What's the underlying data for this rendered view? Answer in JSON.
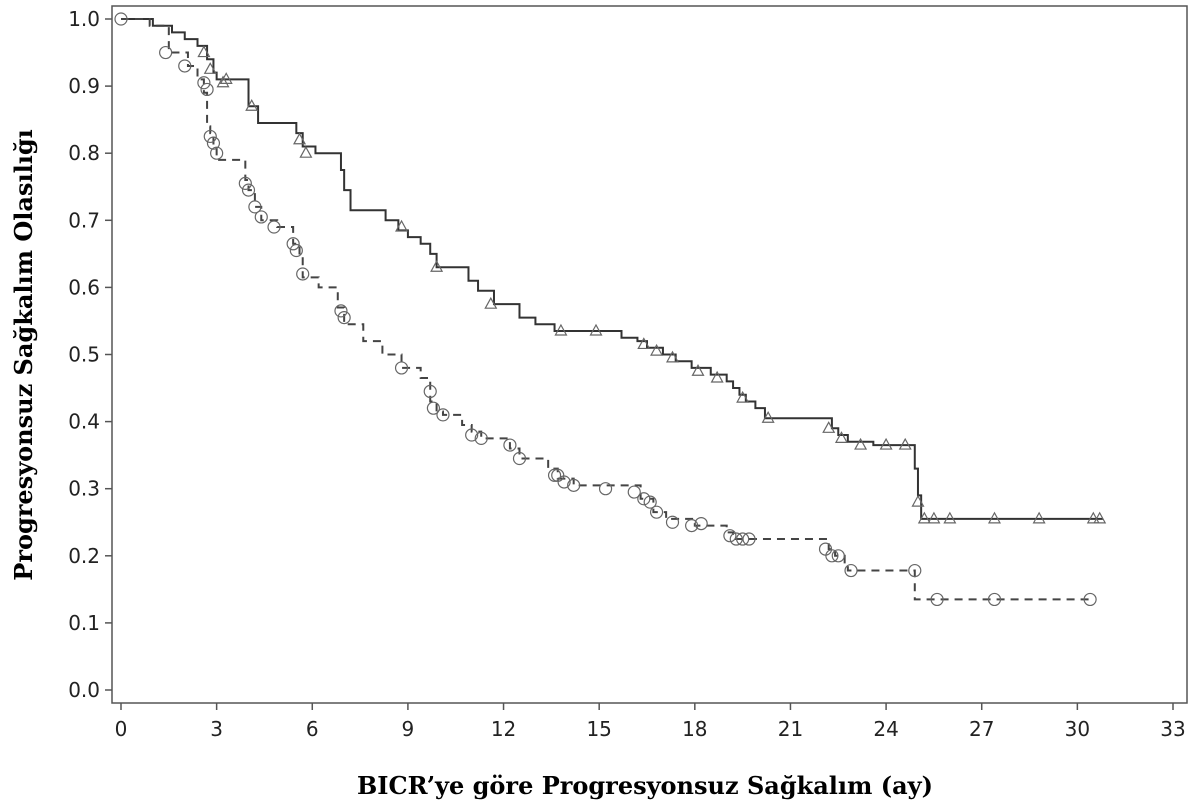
{
  "chart_data": {
    "type": "line",
    "title": "",
    "xlabel": "BICR’ye göre Progresyonsuz Sağkalım (ay)",
    "ylabel": "Progresyonsuz Sağkalım Olasılığı",
    "xlim": [
      0,
      33
    ],
    "ylim": [
      0,
      1.0
    ],
    "x_ticks": [
      "0",
      "3",
      "6",
      "9",
      "12",
      "15",
      "18",
      "21",
      "24",
      "27",
      "30",
      "33"
    ],
    "y_ticks": [
      "0.0",
      "0.1",
      "0.2",
      "0.3",
      "0.4",
      "0.5",
      "0.6",
      "0.7",
      "0.8",
      "0.9",
      "1.0"
    ],
    "grid": false,
    "series": [
      {
        "line_style": "solid",
        "marker": "triangle",
        "color": "#333333",
        "steps": [
          [
            0,
            1.0
          ],
          [
            1.0,
            0.99
          ],
          [
            1.6,
            0.98
          ],
          [
            2.0,
            0.97
          ],
          [
            2.4,
            0.96
          ],
          [
            2.7,
            0.94
          ],
          [
            2.9,
            0.92
          ],
          [
            3.0,
            0.91
          ],
          [
            4.0,
            0.87
          ],
          [
            4.3,
            0.845
          ],
          [
            5.5,
            0.83
          ],
          [
            5.7,
            0.81
          ],
          [
            6.1,
            0.8
          ],
          [
            6.9,
            0.775
          ],
          [
            7.0,
            0.745
          ],
          [
            7.2,
            0.715
          ],
          [
            8.3,
            0.7
          ],
          [
            8.7,
            0.685
          ],
          [
            9.0,
            0.675
          ],
          [
            9.4,
            0.665
          ],
          [
            9.7,
            0.65
          ],
          [
            9.9,
            0.63
          ],
          [
            10.9,
            0.61
          ],
          [
            11.2,
            0.595
          ],
          [
            11.7,
            0.575
          ],
          [
            12.5,
            0.555
          ],
          [
            13.0,
            0.545
          ],
          [
            13.6,
            0.535
          ],
          [
            15.7,
            0.525
          ],
          [
            16.2,
            0.52
          ],
          [
            16.5,
            0.51
          ],
          [
            17.0,
            0.5
          ],
          [
            17.4,
            0.49
          ],
          [
            17.9,
            0.48
          ],
          [
            18.5,
            0.47
          ],
          [
            19.0,
            0.46
          ],
          [
            19.2,
            0.45
          ],
          [
            19.4,
            0.44
          ],
          [
            19.6,
            0.43
          ],
          [
            19.9,
            0.42
          ],
          [
            20.2,
            0.405
          ],
          [
            22.3,
            0.39
          ],
          [
            22.5,
            0.38
          ],
          [
            22.8,
            0.37
          ],
          [
            23.6,
            0.365
          ],
          [
            24.9,
            0.33
          ],
          [
            25.0,
            0.29
          ],
          [
            25.1,
            0.255
          ],
          [
            30.8,
            0.255
          ]
        ],
        "censored": [
          [
            2.6,
            0.95
          ],
          [
            2.8,
            0.925
          ],
          [
            3.2,
            0.905
          ],
          [
            3.3,
            0.91
          ],
          [
            4.1,
            0.87
          ],
          [
            5.6,
            0.82
          ],
          [
            5.8,
            0.8
          ],
          [
            8.8,
            0.69
          ],
          [
            9.9,
            0.63
          ],
          [
            11.6,
            0.575
          ],
          [
            13.8,
            0.535
          ],
          [
            14.9,
            0.535
          ],
          [
            16.4,
            0.515
          ],
          [
            16.8,
            0.505
          ],
          [
            17.3,
            0.495
          ],
          [
            18.1,
            0.475
          ],
          [
            18.7,
            0.465
          ],
          [
            19.5,
            0.435
          ],
          [
            20.3,
            0.405
          ],
          [
            22.2,
            0.39
          ],
          [
            22.6,
            0.375
          ],
          [
            23.2,
            0.365
          ],
          [
            24.0,
            0.365
          ],
          [
            24.6,
            0.365
          ],
          [
            25.0,
            0.28
          ],
          [
            25.2,
            0.255
          ],
          [
            25.5,
            0.255
          ],
          [
            26.0,
            0.255
          ],
          [
            27.4,
            0.255
          ],
          [
            28.8,
            0.255
          ],
          [
            30.5,
            0.255
          ],
          [
            30.7,
            0.255
          ]
        ]
      },
      {
        "line_style": "dashed",
        "marker": "circle",
        "color": "#444444",
        "steps": [
          [
            0,
            1.0
          ],
          [
            0.9,
            0.99
          ],
          [
            1.5,
            0.95
          ],
          [
            2.1,
            0.93
          ],
          [
            2.4,
            0.91
          ],
          [
            2.6,
            0.89
          ],
          [
            2.7,
            0.84
          ],
          [
            2.8,
            0.83
          ],
          [
            2.9,
            0.81
          ],
          [
            3.0,
            0.79
          ],
          [
            3.9,
            0.76
          ],
          [
            4.0,
            0.745
          ],
          [
            4.2,
            0.72
          ],
          [
            4.4,
            0.7
          ],
          [
            4.9,
            0.69
          ],
          [
            5.4,
            0.665
          ],
          [
            5.6,
            0.645
          ],
          [
            5.7,
            0.615
          ],
          [
            6.2,
            0.6
          ],
          [
            6.8,
            0.57
          ],
          [
            7.0,
            0.545
          ],
          [
            7.6,
            0.52
          ],
          [
            8.2,
            0.5
          ],
          [
            8.8,
            0.48
          ],
          [
            9.4,
            0.465
          ],
          [
            9.7,
            0.43
          ],
          [
            9.9,
            0.415
          ],
          [
            10.1,
            0.41
          ],
          [
            10.7,
            0.395
          ],
          [
            11.0,
            0.385
          ],
          [
            11.3,
            0.375
          ],
          [
            12.2,
            0.36
          ],
          [
            12.5,
            0.345
          ],
          [
            13.4,
            0.33
          ],
          [
            13.7,
            0.315
          ],
          [
            14.2,
            0.305
          ],
          [
            16.3,
            0.285
          ],
          [
            16.7,
            0.265
          ],
          [
            17.1,
            0.255
          ],
          [
            18.0,
            0.245
          ],
          [
            19.0,
            0.235
          ],
          [
            19.2,
            0.225
          ],
          [
            22.2,
            0.21
          ],
          [
            22.4,
            0.2
          ],
          [
            22.7,
            0.185
          ],
          [
            22.8,
            0.178
          ],
          [
            24.9,
            0.135
          ],
          [
            30.5,
            0.135
          ]
        ],
        "censored": [
          [
            0.0,
            1.0
          ],
          [
            1.4,
            0.95
          ],
          [
            2.0,
            0.93
          ],
          [
            2.6,
            0.905
          ],
          [
            2.7,
            0.895
          ],
          [
            2.8,
            0.825
          ],
          [
            2.9,
            0.815
          ],
          [
            3.0,
            0.8
          ],
          [
            3.9,
            0.755
          ],
          [
            4.0,
            0.745
          ],
          [
            4.2,
            0.72
          ],
          [
            4.4,
            0.705
          ],
          [
            4.8,
            0.69
          ],
          [
            5.4,
            0.665
          ],
          [
            5.5,
            0.655
          ],
          [
            5.7,
            0.62
          ],
          [
            6.9,
            0.565
          ],
          [
            7.0,
            0.555
          ],
          [
            8.8,
            0.48
          ],
          [
            9.7,
            0.445
          ],
          [
            9.8,
            0.42
          ],
          [
            10.1,
            0.41
          ],
          [
            11.0,
            0.38
          ],
          [
            11.3,
            0.375
          ],
          [
            12.2,
            0.365
          ],
          [
            12.5,
            0.345
          ],
          [
            13.6,
            0.32
          ],
          [
            13.7,
            0.32
          ],
          [
            13.9,
            0.31
          ],
          [
            14.2,
            0.305
          ],
          [
            15.2,
            0.3
          ],
          [
            16.1,
            0.295
          ],
          [
            16.4,
            0.285
          ],
          [
            16.6,
            0.28
          ],
          [
            16.8,
            0.265
          ],
          [
            17.3,
            0.25
          ],
          [
            17.9,
            0.245
          ],
          [
            18.2,
            0.248
          ],
          [
            19.1,
            0.23
          ],
          [
            19.3,
            0.225
          ],
          [
            19.5,
            0.225
          ],
          [
            19.7,
            0.225
          ],
          [
            22.1,
            0.21
          ],
          [
            22.3,
            0.2
          ],
          [
            22.5,
            0.2
          ],
          [
            22.9,
            0.178
          ],
          [
            24.9,
            0.178
          ],
          [
            25.6,
            0.135
          ],
          [
            27.4,
            0.135
          ],
          [
            30.4,
            0.135
          ]
        ]
      }
    ]
  }
}
